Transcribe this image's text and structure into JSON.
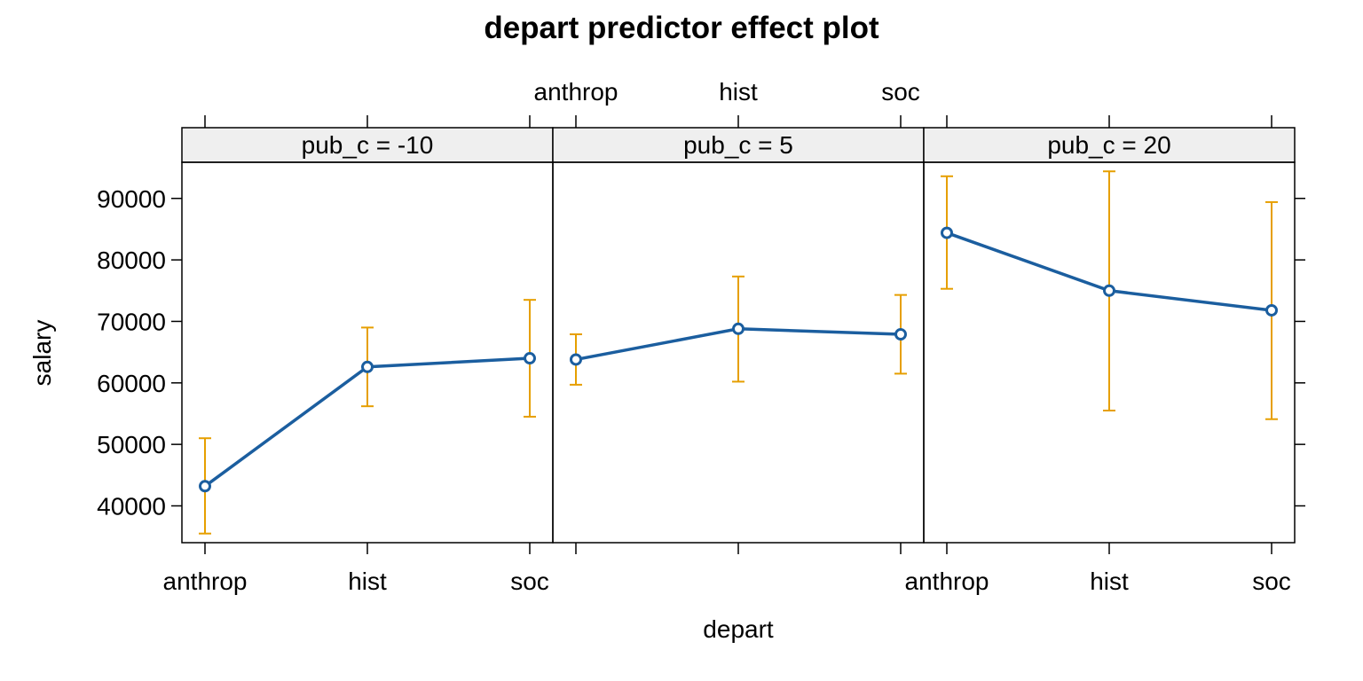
{
  "chart_data": {
    "type": "line",
    "title": "depart predictor effect plot",
    "xlabel": "depart",
    "ylabel": "salary",
    "categories": [
      "anthrop",
      "hist",
      "soc"
    ],
    "ylim": [
      34000,
      96000
    ],
    "yticks": [
      40000,
      50000,
      60000,
      70000,
      80000,
      90000
    ],
    "grid": false,
    "colors": {
      "line": "#1B5E9F",
      "ci": "#E69F00",
      "strip": "#EFEFEF"
    },
    "panels": [
      {
        "label": "pub_c = -10",
        "fit": [
          43200,
          62600,
          64000
        ],
        "lower": [
          35500,
          56200,
          54500
        ],
        "upper": [
          51000,
          69000,
          73500
        ]
      },
      {
        "label": "pub_c = 5",
        "fit": [
          63800,
          68800,
          67900
        ],
        "lower": [
          59700,
          60200,
          61500
        ],
        "upper": [
          67900,
          77300,
          74300
        ]
      },
      {
        "label": "pub_c = 20",
        "fit": [
          84400,
          75000,
          71800
        ],
        "lower": [
          75300,
          55500,
          54100
        ],
        "upper": [
          93600,
          94400,
          89400
        ]
      }
    ]
  }
}
